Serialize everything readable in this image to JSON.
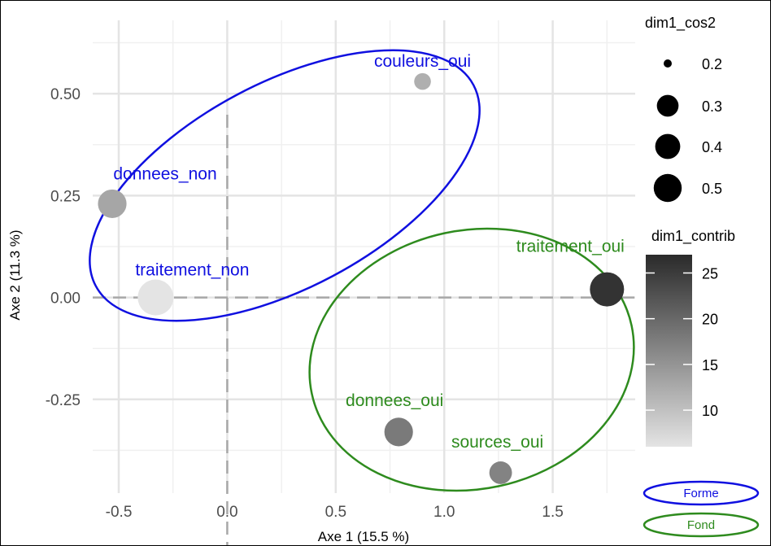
{
  "chart_data": {
    "type": "scatter",
    "xlabel": "Axe 1 (15.5 %)",
    "ylabel": "Axe 2 (11.3 %)",
    "xlim": [
      -0.62,
      1.88
    ],
    "ylim": [
      -0.48,
      0.68
    ],
    "x_ticks": [
      {
        "value": -0.5,
        "label": "-0.5"
      },
      {
        "value": 0.0,
        "label": "0.0"
      },
      {
        "value": 0.5,
        "label": "0.5"
      },
      {
        "value": 1.0,
        "label": "1.0"
      },
      {
        "value": 1.5,
        "label": "1.5"
      }
    ],
    "y_ticks": [
      {
        "value": 0.5,
        "label": "0.50"
      },
      {
        "value": 0.25,
        "label": "0.25"
      },
      {
        "value": 0.0,
        "label": "0.00"
      },
      {
        "value": -0.25,
        "label": "-0.25"
      }
    ],
    "grid": true,
    "points": [
      {
        "label": "couleurs_oui",
        "x": 0.9,
        "y": 0.53,
        "cos2": 0.12,
        "contrib": 12,
        "group": "Forme"
      },
      {
        "label": "donnees_non",
        "x": -0.53,
        "y": 0.23,
        "cos2": 0.35,
        "contrib": 13,
        "group": "Forme"
      },
      {
        "label": "traitement_non",
        "x": -0.33,
        "y": 0.0,
        "cos2": 0.55,
        "contrib": 6,
        "group": "Forme"
      },
      {
        "label": "traitement_oui",
        "x": 1.75,
        "y": 0.02,
        "cos2": 0.5,
        "contrib": 26,
        "group": "Fond"
      },
      {
        "label": "donnees_oui",
        "x": 0.79,
        "y": -0.33,
        "cos2": 0.35,
        "contrib": 18,
        "group": "Fond"
      },
      {
        "label": "sources_oui",
        "x": 1.26,
        "y": -0.43,
        "cos2": 0.22,
        "contrib": 17,
        "group": "Fond"
      }
    ],
    "groups": [
      {
        "name": "Forme",
        "color": "#1010e0"
      },
      {
        "name": "Fond",
        "color": "#2e8b1e"
      }
    ],
    "size_legend": {
      "title": "dim1_cos2",
      "items": [
        {
          "value": 0.2,
          "label": "0.2"
        },
        {
          "value": 0.3,
          "label": "0.3"
        },
        {
          "value": 0.4,
          "label": "0.4"
        },
        {
          "value": 0.5,
          "label": "0.5"
        }
      ]
    },
    "color_legend": {
      "title": "dim1_contrib",
      "range": [
        6,
        27
      ],
      "low_color": "#e4e4e4",
      "high_color": "#2a2a2a",
      "ticks": [
        {
          "value": 25,
          "label": "25"
        },
        {
          "value": 20,
          "label": "20"
        },
        {
          "value": 15,
          "label": "15"
        },
        {
          "value": 10,
          "label": "10"
        }
      ]
    }
  }
}
